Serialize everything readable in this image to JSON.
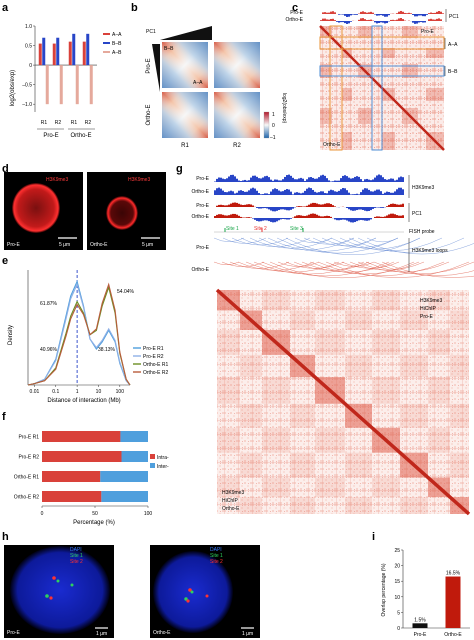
{
  "panels": {
    "a": {
      "label": "a",
      "ylabel": "log2(obs/exp)",
      "legend": [
        "A–A",
        "B–B",
        "A–B"
      ],
      "colors": [
        "#d9413a",
        "#2845c7",
        "#e5a99c"
      ],
      "groups": [
        "Pro-E",
        "Ortho-E"
      ],
      "replicates": [
        "R1",
        "R2",
        "R1",
        "R2"
      ],
      "ticks": [
        "1.0",
        "0.5",
        "0",
        "–0.5",
        "–1.0"
      ]
    },
    "b": {
      "label": "b",
      "pc1": "PC1",
      "rows": [
        "Pro-E",
        "Ortho-E"
      ],
      "cols": [
        "R1",
        "R2"
      ],
      "corner_bb": "B–B",
      "corner_aa": "A–A",
      "colorbar_label": "log2(obs/exp)",
      "colorbar_ticks": [
        "1",
        "0",
        "–1"
      ]
    },
    "c": {
      "label": "c",
      "tracks": [
        "Pro-E",
        "Ortho-E"
      ],
      "pc1": "PC1",
      "tri_top": "Pro-E",
      "tri_bottom": "Ortho-E",
      "box_aa": "A–A",
      "box_bb": "B–B"
    },
    "d": {
      "label": "d",
      "mark": "H3K9me3",
      "images": [
        "Pro-E",
        "Ortho-E"
      ],
      "scale": "5 μm"
    },
    "e": {
      "label": "e",
      "ylabel": "Density",
      "xlabel": "Distance of interaction (Mb)",
      "xticks": [
        "0.01",
        "0.1",
        "1",
        "10",
        "100"
      ],
      "percents": [
        "61.87%",
        "40.96%",
        "54.04%",
        "38.13%"
      ]
    },
    "f": {
      "label": "f",
      "xlabel": "Percentage (%)",
      "xticks": [
        "0",
        "50",
        "100"
      ],
      "legend": [
        "Intra-",
        "Inter-"
      ]
    },
    "g": {
      "label": "g",
      "chip": [
        "Pro-E",
        "Ortho-E"
      ],
      "chip_label": "H3K9me3",
      "pc1_tracks": [
        "Pro-E",
        "Ortho-E"
      ],
      "pc1_label": "PC1",
      "sites": [
        "Site 1",
        "Site 2",
        "Site 3"
      ],
      "fish_label": "FISH probe",
      "loops": [
        "Pro-E",
        "Ortho-E"
      ],
      "loops_label": "H3K9me3 loops",
      "map_top": [
        "H3K9me3",
        "HiChIP",
        "Pro-E"
      ],
      "map_bottom": [
        "H3K9me3",
        "HiChIP",
        "Ortho-E"
      ]
    },
    "h": {
      "label": "h",
      "legend": [
        "DAPI",
        "Site 1",
        "Site 2"
      ],
      "images": [
        "Pro-E",
        "Ortho-E"
      ],
      "scale": "1 μm"
    },
    "i": {
      "label": "i",
      "ylabel": "Overlap percentage (%)",
      "yticks": [
        "0",
        "5",
        "10",
        "15",
        "20",
        "25"
      ]
    }
  },
  "chart_data": [
    {
      "type": "bar",
      "panel": "a",
      "categories": [
        "Pro-E R1",
        "Pro-E R2",
        "Ortho-E R1",
        "Ortho-E R2"
      ],
      "series": [
        {
          "name": "A–A",
          "values": [
            0.55,
            0.55,
            0.6,
            0.6
          ],
          "color": "#d9413a"
        },
        {
          "name": "B–B",
          "values": [
            0.7,
            0.7,
            0.8,
            0.8
          ],
          "color": "#2845c7"
        },
        {
          "name": "A–B",
          "values": [
            -1.0,
            -1.0,
            -1.0,
            -1.0
          ],
          "color": "#e5a99c"
        }
      ],
      "ylim": [
        -1.2,
        1.0
      ]
    },
    {
      "type": "line",
      "panel": "e",
      "xscale": "log",
      "xlim": [
        0.005,
        300
      ],
      "series": [
        {
          "name": "Pro-E R1",
          "color": "#4f9fdd",
          "x": [
            0.005,
            0.01,
            0.03,
            0.1,
            0.3,
            0.5,
            1,
            2,
            4,
            8,
            15,
            30,
            60,
            100,
            200,
            300
          ],
          "y": [
            0.0,
            0.01,
            0.04,
            0.18,
            0.48,
            0.62,
            0.72,
            0.55,
            0.32,
            0.25,
            0.3,
            0.38,
            0.3,
            0.15,
            0.03,
            0.0
          ]
        },
        {
          "name": "Pro-E R2",
          "color": "#8fb0e6",
          "x": [
            0.005,
            0.01,
            0.03,
            0.1,
            0.3,
            0.5,
            1,
            2,
            4,
            8,
            15,
            30,
            60,
            100,
            200,
            300
          ],
          "y": [
            0.0,
            0.01,
            0.04,
            0.17,
            0.46,
            0.6,
            0.7,
            0.54,
            0.32,
            0.26,
            0.31,
            0.39,
            0.31,
            0.16,
            0.03,
            0.0
          ]
        },
        {
          "name": "Ortho-E R1",
          "color": "#6b8e23",
          "x": [
            0.005,
            0.01,
            0.03,
            0.1,
            0.3,
            0.5,
            1,
            2,
            4,
            8,
            15,
            30,
            60,
            100,
            200,
            300
          ],
          "y": [
            0.0,
            0.01,
            0.03,
            0.12,
            0.36,
            0.48,
            0.58,
            0.5,
            0.35,
            0.38,
            0.55,
            0.68,
            0.5,
            0.22,
            0.04,
            0.0
          ]
        },
        {
          "name": "Ortho-E R2",
          "color": "#b85c3c",
          "x": [
            0.005,
            0.01,
            0.03,
            0.1,
            0.3,
            0.5,
            1,
            2,
            4,
            8,
            15,
            30,
            60,
            100,
            200,
            300
          ],
          "y": [
            0.0,
            0.01,
            0.03,
            0.11,
            0.34,
            0.46,
            0.56,
            0.49,
            0.35,
            0.39,
            0.57,
            0.7,
            0.52,
            0.23,
            0.04,
            0.0
          ]
        }
      ]
    },
    {
      "type": "bar",
      "panel": "f",
      "orientation": "horizontal",
      "stacked": true,
      "categories": [
        "Pro-E R1",
        "Pro-E R2",
        "Ortho-E R1",
        "Ortho-E R2"
      ],
      "series": [
        {
          "name": "Intra-",
          "values": [
            74,
            75,
            55,
            56
          ],
          "color": "#d9413a"
        },
        {
          "name": "Inter-",
          "values": [
            26,
            25,
            45,
            44
          ],
          "color": "#4f9fdd"
        }
      ],
      "xlim": [
        0,
        100
      ]
    },
    {
      "type": "bar",
      "panel": "i",
      "categories": [
        "Pro-E",
        "Ortho-E"
      ],
      "values": [
        1.5,
        16.5
      ],
      "labels": [
        "1.5%",
        "16.5%"
      ],
      "colors": [
        "#111111",
        "#c01a0c"
      ],
      "ylim": [
        0,
        25
      ]
    }
  ]
}
